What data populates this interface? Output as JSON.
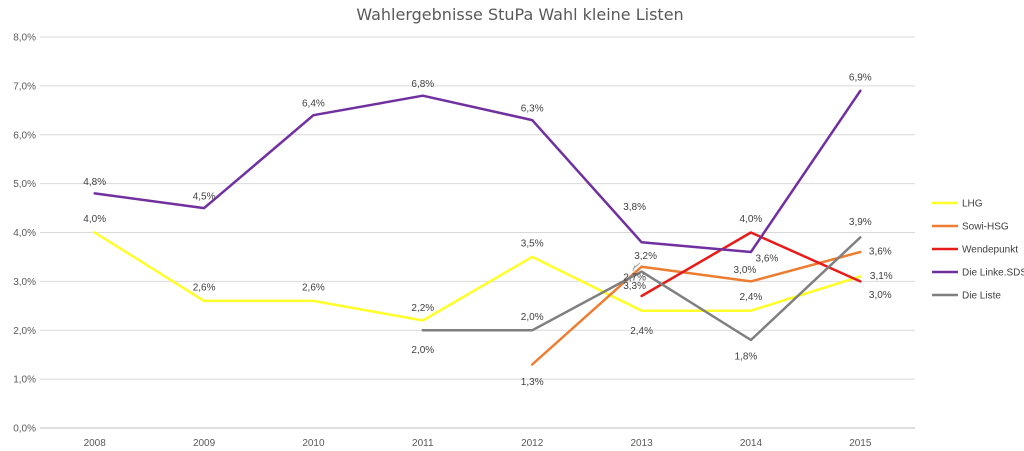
{
  "chart_data": {
    "type": "line",
    "title": "Wahlergebnisse StuPa Wahl kleine Listen",
    "xlabel": "",
    "ylabel": "",
    "categories": [
      "2008",
      "2009",
      "2010",
      "2011",
      "2012",
      "2013",
      "2014",
      "2015"
    ],
    "ylim": [
      0,
      8
    ],
    "y_ticks": [
      {
        "value": 0,
        "label": "0,0%"
      },
      {
        "value": 1,
        "label": "1,0%"
      },
      {
        "value": 2,
        "label": "2,0%"
      },
      {
        "value": 3,
        "label": "3,0%"
      },
      {
        "value": 4,
        "label": "4,0%"
      },
      {
        "value": 5,
        "label": "5,0%"
      },
      {
        "value": 6,
        "label": "6,0%"
      },
      {
        "value": 7,
        "label": "7,0%"
      },
      {
        "value": 8,
        "label": "8,0%"
      }
    ],
    "grid": true,
    "legend_position": "right",
    "series": [
      {
        "name": "LHG",
        "color": "#FFFF2A",
        "values": [
          4.0,
          2.6,
          2.6,
          2.2,
          3.5,
          2.4,
          2.4,
          3.1
        ],
        "labels": [
          "4,0%",
          "2,6%",
          "2,6%",
          "2,2%",
          "3,5%",
          "2,4%",
          "2,4%",
          "3,1%"
        ]
      },
      {
        "name": "Sowi-HSG",
        "color": "#ED7D31",
        "values": [
          null,
          null,
          null,
          null,
          1.3,
          3.3,
          3.0,
          3.6
        ],
        "labels": [
          null,
          null,
          null,
          null,
          "1,3%",
          "3,3%",
          "3,0%",
          "3,6%"
        ]
      },
      {
        "name": "Wendepunkt",
        "color": "#E81B1B",
        "values": [
          null,
          null,
          null,
          null,
          null,
          2.7,
          4.0,
          3.0
        ],
        "labels": [
          null,
          null,
          null,
          null,
          null,
          "2,7%",
          "4,0%",
          "3,0%"
        ]
      },
      {
        "name": "Die Linke.SDS",
        "color": "#7030A0",
        "values": [
          4.8,
          4.5,
          6.4,
          6.8,
          6.3,
          3.8,
          3.6,
          6.9
        ],
        "labels": [
          "4,8%",
          "4,5%",
          "6,4%",
          "6,8%",
          "6,3%",
          "3,8%",
          "3,6%",
          "6,9%"
        ]
      },
      {
        "name": "Die Liste",
        "color": "#7F7F7F",
        "values": [
          null,
          null,
          null,
          2.0,
          2.0,
          3.2,
          1.8,
          3.9
        ],
        "labels": [
          null,
          null,
          null,
          "2,0%",
          "2,0%",
          "3,2%",
          "1,8%",
          "3,9%"
        ]
      }
    ]
  }
}
